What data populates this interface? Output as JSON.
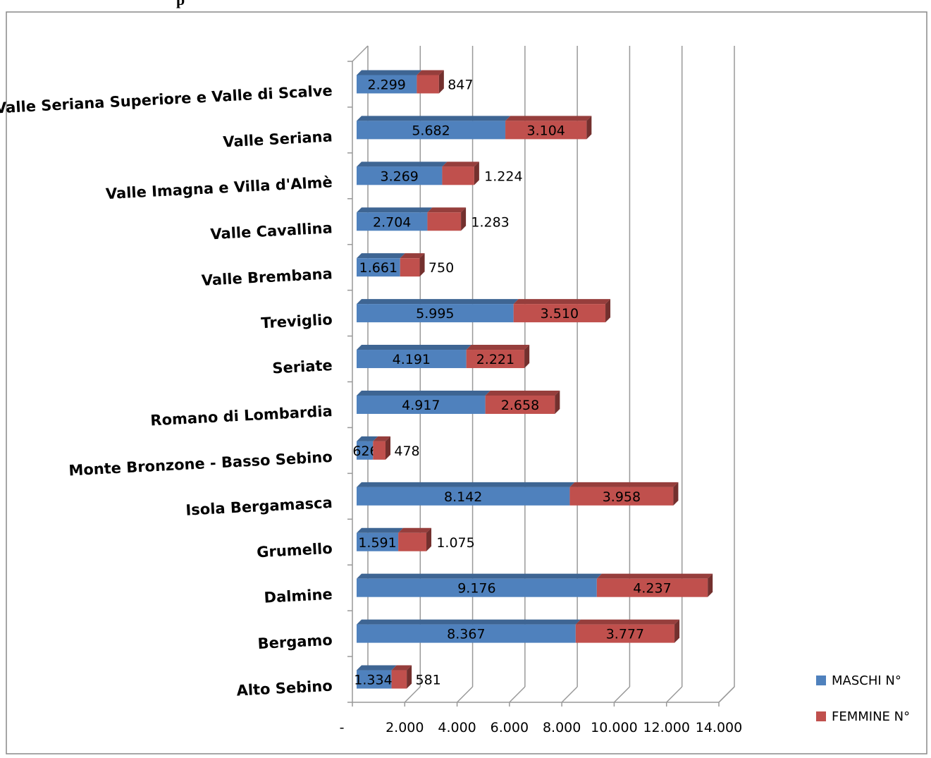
{
  "header_fragment": "p",
  "chart_data": {
    "type": "bar",
    "orientation": "horizontal",
    "stacked": true,
    "three_d": true,
    "categories": [
      "Valle Seriana Superiore e Valle di Scalve",
      "Valle Seriana",
      "Valle Imagna e Villa d'Almè",
      "Valle Cavallina",
      "Valle Brembana",
      "Treviglio",
      "Seriate",
      "Romano di Lombardia",
      "Monte Bronzone - Basso Sebino",
      "Isola Bergamasca",
      "Grumello",
      "Dalmine",
      "Bergamo",
      "Alto Sebino"
    ],
    "series": [
      {
        "name": "MASCHI N°",
        "color": "#4F81BD",
        "values": [
          2299,
          5682,
          3269,
          2704,
          1661,
          5995,
          4191,
          4917,
          626,
          8142,
          1591,
          9176,
          8367,
          1334
        ],
        "labels": [
          "2.299",
          "5.682",
          "3.269",
          "2.704",
          "1.661",
          "5.995",
          "4.191",
          "4.917",
          "626",
          "8.142",
          "1.591",
          "9.176",
          "8.367",
          "1.334"
        ]
      },
      {
        "name": "FEMMINE N°",
        "color": "#C0504D",
        "values": [
          847,
          3104,
          1224,
          1283,
          750,
          3510,
          2221,
          2658,
          478,
          3958,
          1075,
          4237,
          3777,
          581
        ],
        "labels": [
          "847",
          "3.104",
          "1.224",
          "1.283",
          "750",
          "3.510",
          "2.221",
          "2.658",
          "478",
          "3.958",
          "1.075",
          "4.237",
          "3.777",
          "581"
        ]
      }
    ],
    "xlim": [
      0,
      14000
    ],
    "xticks": [
      0,
      2000,
      4000,
      6000,
      8000,
      10000,
      12000,
      14000
    ],
    "xtick_labels": [
      "-",
      "2.000",
      "4.000",
      "6.000",
      "8.000",
      "10.000",
      "12.000",
      "14.000"
    ],
    "grid": true,
    "legend_position": "bottom-right"
  }
}
